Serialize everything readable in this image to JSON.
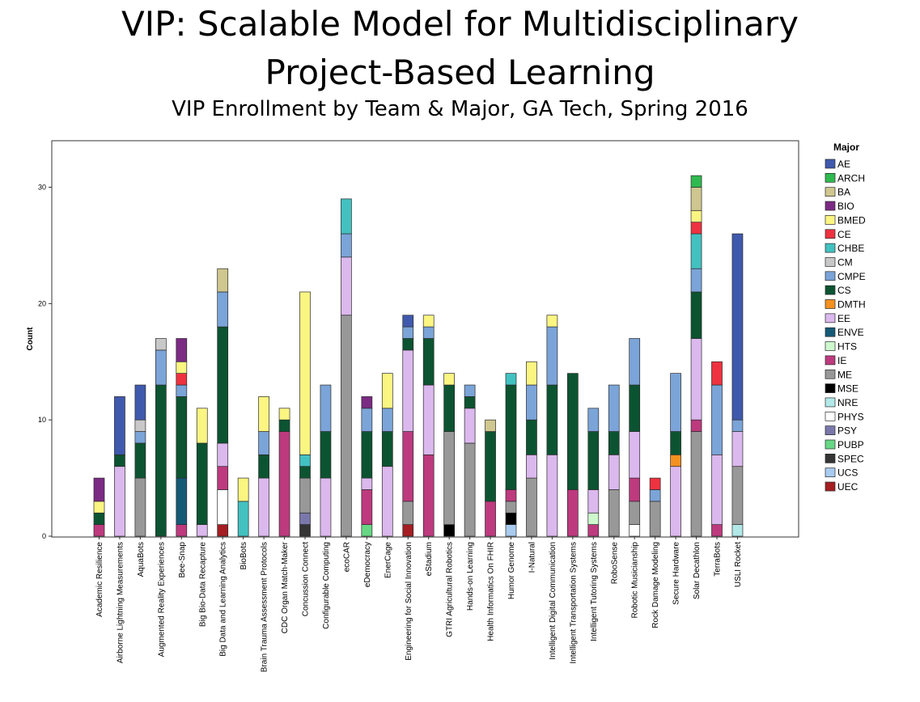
{
  "slide": {
    "title_line1": "VIP: Scalable Model for Multidisciplinary",
    "title_line2": "Project-Based Learning",
    "subtitle": "VIP Enrollment by Team & Major, GA Tech, Spring 2016"
  },
  "chart_data": {
    "type": "bar",
    "stacked": true,
    "title": "VIP Enrollment by Team & Major, GA Tech, Spring 2016",
    "xlabel": "",
    "ylabel": "Count",
    "ylim": [
      0,
      34
    ],
    "yticks": [
      0,
      10,
      20,
      30
    ],
    "grid": false,
    "legend": {
      "title": "Major",
      "placement": "right"
    },
    "categories": [
      "Academic Resilience",
      "Airborne Lightning Measurements",
      "AquaBots",
      "Augmented Reality Experiences",
      "Bee-Snap",
      "Big Bio-Data Recapture",
      "Big Data and Learning Analytics",
      "BioBots",
      "Brain Trauma Assessment Protocols",
      "CDC Organ Match-Maker",
      "Concussion Connect",
      "Configurable Computing",
      "ecoCAR",
      "eDemocracy",
      "EnerCage",
      "Engineering for Social Innovation",
      "eStadium",
      "GTRI Agricultural Robotics",
      "Hands-on Learning",
      "Health Informatics On FHIR",
      "Humor Genome",
      "I-Natural",
      "Intelligent Digital Communication",
      "Intelligent Transportation Systems",
      "Intelligent Tutoring Systems",
      "RoboSense",
      "Robotic Musicianship",
      "Rock Damage Modeling",
      "Secure Hardware",
      "Solar Decathlon",
      "TerraBots",
      "USLI Rocket"
    ],
    "majors": [
      {
        "name": "AE",
        "color": "#3f59ad"
      },
      {
        "name": "ARCH",
        "color": "#2fba4f"
      },
      {
        "name": "BA",
        "color": "#cfc78f"
      },
      {
        "name": "BIO",
        "color": "#7b2b84"
      },
      {
        "name": "BMED",
        "color": "#fbf582"
      },
      {
        "name": "CE",
        "color": "#ee3240"
      },
      {
        "name": "CHBE",
        "color": "#43c1c1"
      },
      {
        "name": "CM",
        "color": "#c8c8c8"
      },
      {
        "name": "CMPE",
        "color": "#7ba4d8"
      },
      {
        "name": "CS",
        "color": "#0c5431"
      },
      {
        "name": "DMTH",
        "color": "#f4911f"
      },
      {
        "name": "EE",
        "color": "#dbb8ed"
      },
      {
        "name": "ENVE",
        "color": "#145a76"
      },
      {
        "name": "HTS",
        "color": "#cdf8cd"
      },
      {
        "name": "IE",
        "color": "#bd3a7e"
      },
      {
        "name": "ME",
        "color": "#989898"
      },
      {
        "name": "MSE",
        "color": "#000000"
      },
      {
        "name": "NRE",
        "color": "#b2e8e8"
      },
      {
        "name": "PHYS",
        "color": "#ffffff"
      },
      {
        "name": "PSY",
        "color": "#7a78ab"
      },
      {
        "name": "PUBP",
        "color": "#67d785"
      },
      {
        "name": "SPEC",
        "color": "#353535"
      },
      {
        "name": "UCS",
        "color": "#a8cbef"
      },
      {
        "name": "UEC",
        "color": "#a51e22"
      }
    ],
    "bars": [
      [
        [
          "IE",
          1
        ],
        [
          "CS",
          1
        ],
        [
          "BMED",
          1
        ],
        [
          "BIO",
          2
        ]
      ],
      [
        [
          "EE",
          6
        ],
        [
          "CS",
          1
        ],
        [
          "AE",
          5
        ]
      ],
      [
        [
          "ME",
          5
        ],
        [
          "CS",
          3
        ],
        [
          "CMPE",
          1
        ],
        [
          "CM",
          1
        ],
        [
          "AE",
          3
        ]
      ],
      [
        [
          "CS",
          13
        ],
        [
          "CMPE",
          3
        ],
        [
          "CM",
          1
        ]
      ],
      [
        [
          "IE",
          1
        ],
        [
          "ENVE",
          4
        ],
        [
          "CS",
          7
        ],
        [
          "CMPE",
          1
        ],
        [
          "CE",
          1
        ],
        [
          "BMED",
          1
        ],
        [
          "BIO",
          2
        ]
      ],
      [
        [
          "EE",
          1
        ],
        [
          "CS",
          7
        ],
        [
          "BMED",
          3
        ]
      ],
      [
        [
          "UEC",
          1
        ],
        [
          "PHYS",
          3
        ],
        [
          "IE",
          2
        ],
        [
          "EE",
          2
        ],
        [
          "CS",
          10
        ],
        [
          "CMPE",
          3
        ],
        [
          "BA",
          2
        ]
      ],
      [
        [
          "CHBE",
          3
        ],
        [
          "BMED",
          2
        ]
      ],
      [
        [
          "EE",
          5
        ],
        [
          "CS",
          2
        ],
        [
          "CMPE",
          2
        ],
        [
          "BMED",
          3
        ]
      ],
      [
        [
          "IE",
          9
        ],
        [
          "CS",
          1
        ],
        [
          "BMED",
          1
        ]
      ],
      [
        [
          "SPEC",
          1
        ],
        [
          "PSY",
          1
        ],
        [
          "ME",
          3
        ],
        [
          "CS",
          1
        ],
        [
          "CHBE",
          1
        ],
        [
          "BMED",
          14
        ]
      ],
      [
        [
          "EE",
          5
        ],
        [
          "CS",
          4
        ],
        [
          "CMPE",
          4
        ]
      ],
      [
        [
          "ME",
          19
        ],
        [
          "EE",
          5
        ],
        [
          "CMPE",
          2
        ],
        [
          "CHBE",
          3
        ]
      ],
      [
        [
          "PUBP",
          1
        ],
        [
          "IE",
          3
        ],
        [
          "EE",
          1
        ],
        [
          "CS",
          4
        ],
        [
          "CMPE",
          2
        ],
        [
          "BIO",
          1
        ]
      ],
      [
        [
          "EE",
          6
        ],
        [
          "CS",
          3
        ],
        [
          "CMPE",
          2
        ],
        [
          "BMED",
          3
        ]
      ],
      [
        [
          "UEC",
          1
        ],
        [
          "ME",
          2
        ],
        [
          "IE",
          6
        ],
        [
          "EE",
          7
        ],
        [
          "CS",
          1
        ],
        [
          "CMPE",
          1
        ],
        [
          "AE",
          1
        ]
      ],
      [
        [
          "IE",
          7
        ],
        [
          "EE",
          6
        ],
        [
          "CS",
          4
        ],
        [
          "CMPE",
          1
        ],
        [
          "BMED",
          1
        ]
      ],
      [
        [
          "MSE",
          1
        ],
        [
          "ME",
          8
        ],
        [
          "CS",
          4
        ],
        [
          "BMED",
          1
        ]
      ],
      [
        [
          "ME",
          8
        ],
        [
          "EE",
          3
        ],
        [
          "CS",
          1
        ],
        [
          "CMPE",
          1
        ]
      ],
      [
        [
          "IE",
          3
        ],
        [
          "CS",
          6
        ],
        [
          "BA",
          1
        ]
      ],
      [
        [
          "UCS",
          1
        ],
        [
          "MSE",
          1
        ],
        [
          "ME",
          1
        ],
        [
          "IE",
          1
        ],
        [
          "CS",
          9
        ],
        [
          "CHBE",
          1
        ]
      ],
      [
        [
          "ME",
          5
        ],
        [
          "EE",
          2
        ],
        [
          "CS",
          3
        ],
        [
          "CMPE",
          3
        ],
        [
          "BMED",
          2
        ]
      ],
      [
        [
          "EE",
          7
        ],
        [
          "CS",
          6
        ],
        [
          "CMPE",
          5
        ],
        [
          "BMED",
          1
        ]
      ],
      [
        [
          "IE",
          4
        ],
        [
          "CS",
          10
        ]
      ],
      [
        [
          "IE",
          1
        ],
        [
          "HTS",
          1
        ],
        [
          "EE",
          2
        ],
        [
          "CS",
          5
        ],
        [
          "CMPE",
          2
        ]
      ],
      [
        [
          "ME",
          4
        ],
        [
          "EE",
          3
        ],
        [
          "CS",
          2
        ],
        [
          "CMPE",
          4
        ]
      ],
      [
        [
          "PHYS",
          1
        ],
        [
          "ME",
          2
        ],
        [
          "IE",
          2
        ],
        [
          "EE",
          4
        ],
        [
          "CS",
          4
        ],
        [
          "CMPE",
          4
        ]
      ],
      [
        [
          "ME",
          3
        ],
        [
          "CMPE",
          1
        ],
        [
          "CE",
          1
        ]
      ],
      [
        [
          "EE",
          6
        ],
        [
          "DMTH",
          1
        ],
        [
          "CS",
          2
        ],
        [
          "CMPE",
          5
        ]
      ],
      [
        [
          "ME",
          9
        ],
        [
          "IE",
          1
        ],
        [
          "EE",
          7
        ],
        [
          "CS",
          4
        ],
        [
          "CMPE",
          2
        ],
        [
          "CHBE",
          3
        ],
        [
          "CE",
          1
        ],
        [
          "BMED",
          1
        ],
        [
          "BA",
          2
        ],
        [
          "ARCH",
          1
        ]
      ],
      [
        [
          "IE",
          1
        ],
        [
          "EE",
          6
        ],
        [
          "CMPE",
          6
        ],
        [
          "CE",
          2
        ]
      ],
      [
        [
          "NRE",
          1
        ],
        [
          "ME",
          5
        ],
        [
          "EE",
          3
        ],
        [
          "CMPE",
          1
        ],
        [
          "AE",
          16
        ]
      ]
    ]
  }
}
